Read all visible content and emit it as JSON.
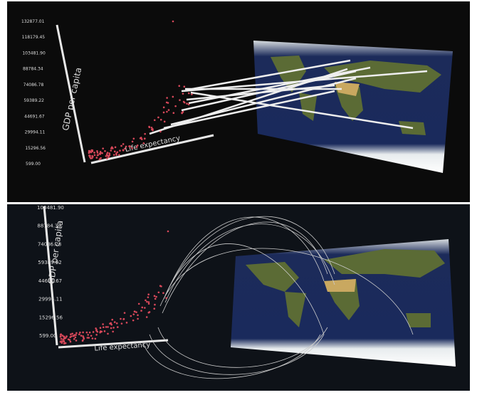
{
  "panels": [
    {
      "y_axis_title": "GDP per capita",
      "x_axis_title": "Life expectancy",
      "y_tick_labels": [
        "599.00",
        "15296.56",
        "29994.11",
        "44691.67",
        "59389.22",
        "74086.78",
        "88784.34",
        "103481.90",
        "118179.45",
        "132877.01"
      ]
    },
    {
      "y_axis_title": "GDP per capita",
      "x_axis_title": "Life expectancy",
      "y_tick_labels": [
        "599.00",
        "15296.56",
        "29994.11",
        "44691.67",
        "59389.22",
        "74086.78",
        "88784.34",
        "103481.90"
      ]
    }
  ]
}
